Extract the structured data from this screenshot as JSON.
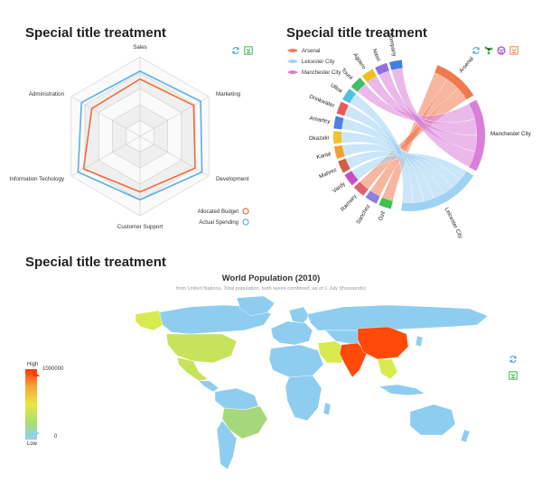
{
  "cards": [
    {
      "title": "Special title treatment"
    },
    {
      "title": "Special title treatment"
    },
    {
      "title": "Special title treatment"
    }
  ],
  "colors": {
    "allocated": "#f26b3a",
    "actual": "#5aaee8",
    "arsenal": "#f07a50",
    "leicester": "#9fd2f2",
    "manchester": "#d97fd9",
    "tool_blue": "#3a9bdc",
    "tool_green": "#3fb24a",
    "tool_purple": "#a04fc9",
    "tool_orange": "#e8874a"
  },
  "chart_data": [
    {
      "type": "radar",
      "indicators": [
        "Sales",
        "Marketing",
        "Development",
        "Customer Support",
        "Information Techology",
        "Administration"
      ],
      "max": 100,
      "series": [
        {
          "name": "Allocated Budget",
          "values": [
            72,
            78,
            80,
            70,
            82,
            70
          ]
        },
        {
          "name": "Actual Spending",
          "values": [
            82,
            88,
            90,
            80,
            90,
            85
          ]
        }
      ],
      "legend_position": "bottom-right"
    },
    {
      "type": "chord",
      "legend": [
        "Arsenal",
        "Leicester City",
        "Manchester City"
      ],
      "teams": [
        {
          "name": "Arsenal",
          "weight": 11
        },
        {
          "name": "Manchester City",
          "weight": 17
        },
        {
          "name": "Leicester City",
          "weight": 34
        }
      ],
      "players": [
        "Özil",
        "Sanchez",
        "Ramsey",
        "Vardy",
        "Mahrez",
        "Kanté",
        "Okazaki",
        "Amartey",
        "Drinkwater",
        "Ulloa",
        "Touré",
        "Agüero",
        "Nasri",
        "Kompany"
      ],
      "player_colors": [
        "#3fc24a",
        "#8b7fe0",
        "#e06070",
        "#c84fc0",
        "#d06040",
        "#f0a030",
        "#f2c230",
        "#4a80e0",
        "#e85a5a",
        "#50c0e0",
        "#40c060",
        "#f0c020",
        "#9070e0",
        "#4080e0"
      ]
    },
    {
      "type": "map",
      "title": "World Population (2010)",
      "subtitle": "from United Nations, Total population, both sexes combined, as of 1 July (thousands)",
      "visual_map": {
        "min": 0,
        "max": 1000000,
        "high_label": "High",
        "low_label": "Low",
        "max_label": "1000000",
        "min_label": "0"
      },
      "highlighted": [
        {
          "region": "China",
          "value": 1341335
        },
        {
          "region": "India",
          "value": 1224614
        },
        {
          "region": "United States",
          "value": 310384
        },
        {
          "region": "Brazil",
          "value": 194946
        }
      ]
    }
  ]
}
